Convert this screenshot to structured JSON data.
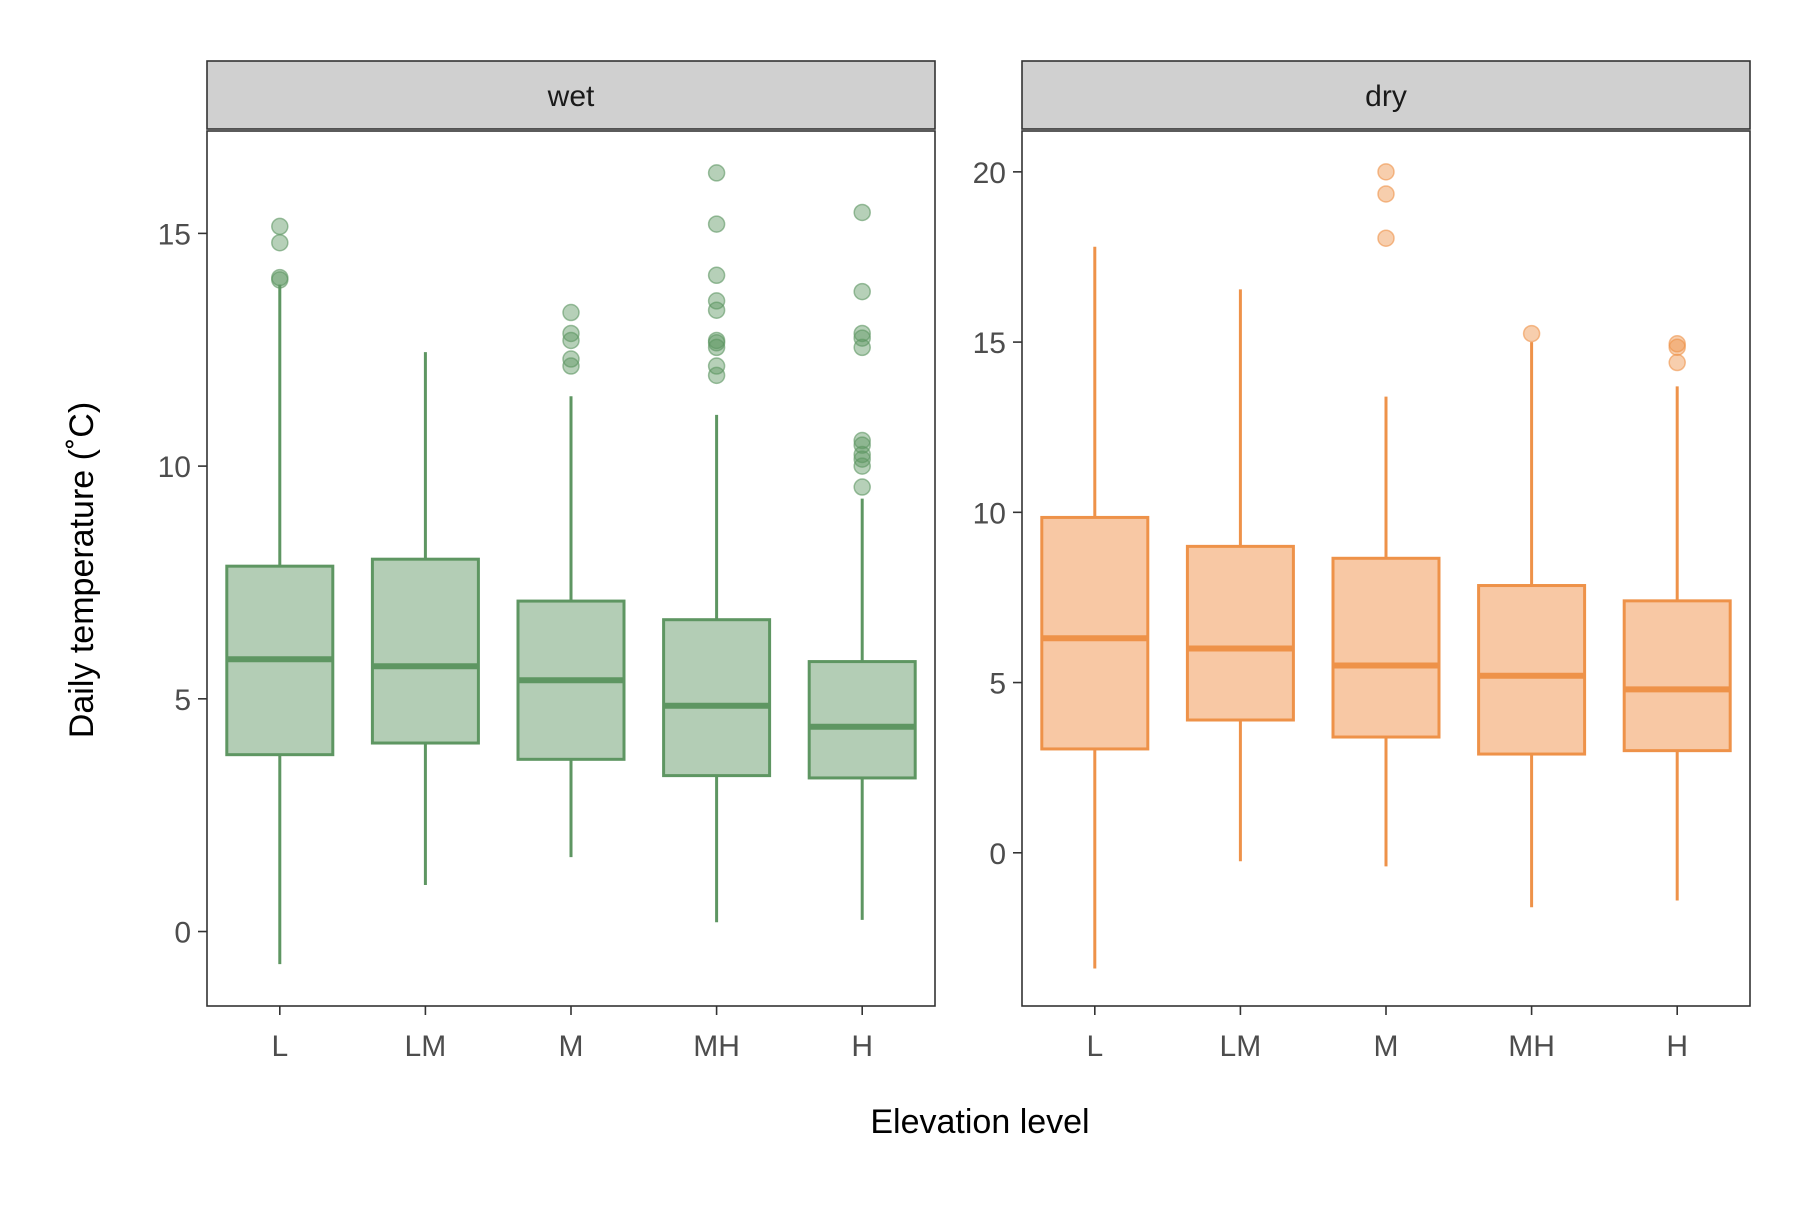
{
  "chart_data": {
    "type": "boxplot",
    "xlabel": "Elevation level",
    "ylabel": "Daily temperature (˚C)",
    "categories": [
      "L",
      "LM",
      "M",
      "MH",
      "H"
    ],
    "grid": false,
    "legend": "none",
    "panels": [
      {
        "label": "wet",
        "color": "#5e9662",
        "fill": "#b3cdb5",
        "ylim": [
          -1.6,
          17.2
        ],
        "yticks": [
          0,
          5,
          10,
          15
        ],
        "boxes": [
          {
            "category": "L",
            "q1": 3.8,
            "median": 5.85,
            "q3": 7.85,
            "whisker_low": -0.7,
            "whisker_high": 13.9,
            "outliers": [
              14.0,
              14.05,
              14.8,
              15.15
            ]
          },
          {
            "category": "LM",
            "q1": 4.05,
            "median": 5.7,
            "q3": 8.0,
            "whisker_low": 1.0,
            "whisker_high": 12.45,
            "outliers": []
          },
          {
            "category": "M",
            "q1": 3.7,
            "median": 5.4,
            "q3": 7.1,
            "whisker_low": 1.6,
            "whisker_high": 11.5,
            "outliers": [
              12.15,
              12.3,
              12.7,
              12.85,
              13.3
            ]
          },
          {
            "category": "MH",
            "q1": 3.35,
            "median": 4.85,
            "q3": 6.7,
            "whisker_low": 0.2,
            "whisker_high": 11.1,
            "outliers": [
              11.95,
              12.15,
              12.55,
              12.65,
              12.7,
              13.35,
              13.55,
              14.1,
              15.2,
              16.3
            ]
          },
          {
            "category": "H",
            "q1": 3.3,
            "median": 4.4,
            "q3": 5.8,
            "whisker_low": 0.25,
            "whisker_high": 9.3,
            "outliers": [
              9.55,
              10.0,
              10.15,
              10.25,
              10.45,
              10.55,
              12.55,
              12.75,
              12.85,
              13.75,
              15.45
            ]
          }
        ]
      },
      {
        "label": "dry",
        "color": "#ee9249",
        "fill": "#f8c8a4",
        "ylim": [
          -4.5,
          21.2
        ],
        "yticks": [
          0,
          5,
          10,
          15,
          20
        ],
        "boxes": [
          {
            "category": "L",
            "q1": 3.05,
            "median": 6.3,
            "q3": 9.85,
            "whisker_low": -3.4,
            "whisker_high": 17.8,
            "outliers": []
          },
          {
            "category": "LM",
            "q1": 3.9,
            "median": 6.0,
            "q3": 9.0,
            "whisker_low": -0.25,
            "whisker_high": 16.55,
            "outliers": []
          },
          {
            "category": "M",
            "q1": 3.4,
            "median": 5.5,
            "q3": 8.65,
            "whisker_low": -0.4,
            "whisker_high": 13.4,
            "outliers": [
              18.05,
              19.35,
              20.0
            ]
          },
          {
            "category": "MH",
            "q1": 2.9,
            "median": 5.2,
            "q3": 7.85,
            "whisker_low": -1.6,
            "whisker_high": 15.0,
            "outliers": [
              15.25
            ]
          },
          {
            "category": "H",
            "q1": 3.0,
            "median": 4.8,
            "q3": 7.4,
            "whisker_low": -1.4,
            "whisker_high": 13.7,
            "outliers": [
              14.4,
              14.85,
              14.95
            ]
          }
        ]
      }
    ]
  }
}
